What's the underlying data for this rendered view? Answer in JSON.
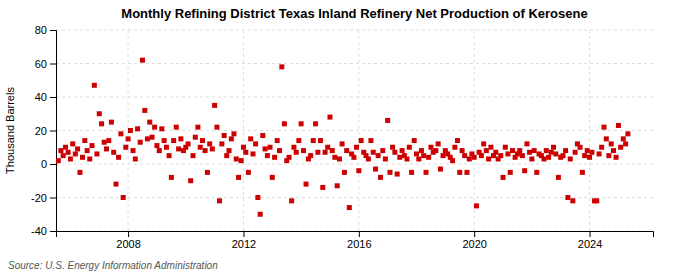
{
  "chart_data": {
    "type": "scatter",
    "title": "Monthly Refining District Texas Inland Refinery Net Production of Kerosene",
    "ylabel": "Thousand Barrels",
    "annotation": "Source: U.S. Energy Information Administration",
    "color": "#cc0000",
    "marker": "square",
    "grid": true,
    "xlim": [
      2005.5,
      2026.2
    ],
    "xticks": [
      2008,
      2012,
      2016,
      2020,
      2024
    ],
    "ylim": [
      -40,
      80
    ],
    "yticks": [
      -40,
      -20,
      0,
      20,
      40,
      60,
      80
    ],
    "x": [
      2005.58,
      2005.67,
      2005.75,
      2005.83,
      2005.92,
      2006.0,
      2006.08,
      2006.17,
      2006.25,
      2006.33,
      2006.42,
      2006.5,
      2006.58,
      2006.67,
      2006.75,
      2006.83,
      2006.92,
      2007.0,
      2007.08,
      2007.17,
      2007.25,
      2007.33,
      2007.42,
      2007.5,
      2007.58,
      2007.67,
      2007.75,
      2007.83,
      2007.92,
      2008.0,
      2008.08,
      2008.17,
      2008.25,
      2008.33,
      2008.42,
      2008.5,
      2008.58,
      2008.67,
      2008.75,
      2008.83,
      2008.92,
      2009.0,
      2009.08,
      2009.17,
      2009.25,
      2009.33,
      2009.42,
      2009.5,
      2009.58,
      2009.67,
      2009.75,
      2009.83,
      2009.92,
      2010.0,
      2010.08,
      2010.17,
      2010.25,
      2010.33,
      2010.42,
      2010.5,
      2010.58,
      2010.67,
      2010.75,
      2010.83,
      2010.92,
      2011.0,
      2011.08,
      2011.17,
      2011.25,
      2011.33,
      2011.42,
      2011.5,
      2011.58,
      2011.67,
      2011.75,
      2011.83,
      2011.92,
      2012.0,
      2012.08,
      2012.17,
      2012.25,
      2012.33,
      2012.42,
      2012.5,
      2012.58,
      2012.67,
      2012.75,
      2012.83,
      2012.92,
      2013.0,
      2013.08,
      2013.17,
      2013.25,
      2013.33,
      2013.42,
      2013.5,
      2013.58,
      2013.67,
      2013.75,
      2013.83,
      2013.92,
      2014.0,
      2014.08,
      2014.17,
      2014.25,
      2014.33,
      2014.42,
      2014.5,
      2014.58,
      2014.67,
      2014.75,
      2014.83,
      2014.92,
      2015.0,
      2015.08,
      2015.17,
      2015.25,
      2015.33,
      2015.42,
      2015.5,
      2015.58,
      2015.67,
      2015.75,
      2015.83,
      2015.92,
      2016.0,
      2016.08,
      2016.17,
      2016.25,
      2016.33,
      2016.42,
      2016.5,
      2016.58,
      2016.67,
      2016.75,
      2016.83,
      2016.92,
      2017.0,
      2017.08,
      2017.17,
      2017.25,
      2017.33,
      2017.42,
      2017.5,
      2017.58,
      2017.67,
      2017.75,
      2017.83,
      2017.92,
      2018.0,
      2018.08,
      2018.17,
      2018.25,
      2018.33,
      2018.42,
      2018.5,
      2018.58,
      2018.67,
      2018.75,
      2018.83,
      2018.92,
      2019.0,
      2019.08,
      2019.17,
      2019.25,
      2019.33,
      2019.42,
      2019.5,
      2019.58,
      2019.67,
      2019.75,
      2019.83,
      2019.92,
      2020.0,
      2020.08,
      2020.17,
      2020.25,
      2020.33,
      2020.42,
      2020.5,
      2020.58,
      2020.67,
      2020.75,
      2020.83,
      2020.92,
      2021.0,
      2021.08,
      2021.17,
      2021.25,
      2021.33,
      2021.42,
      2021.5,
      2021.58,
      2021.67,
      2021.75,
      2021.83,
      2021.92,
      2022.0,
      2022.08,
      2022.17,
      2022.25,
      2022.33,
      2022.42,
      2022.5,
      2022.58,
      2022.67,
      2022.75,
      2022.83,
      2022.92,
      2023.0,
      2023.08,
      2023.17,
      2023.25,
      2023.33,
      2023.42,
      2023.5,
      2023.58,
      2023.67,
      2023.75,
      2023.83,
      2023.92,
      2024.0,
      2024.08,
      2024.17,
      2024.25,
      2024.33,
      2024.42,
      2024.5,
      2024.58,
      2024.67,
      2024.75,
      2024.83,
      2024.92,
      2025.0,
      2025.08,
      2025.17,
      2025.25,
      2025.33
    ],
    "values": [
      2,
      8,
      5,
      10,
      7,
      3,
      12,
      6,
      9,
      -5,
      4,
      14,
      8,
      3,
      11,
      47,
      6,
      30,
      24,
      13,
      9,
      14,
      25,
      7,
      -12,
      4,
      18,
      -20,
      10,
      15,
      20,
      8,
      3,
      21,
      13,
      62,
      32,
      15,
      25,
      16,
      22,
      11,
      8,
      21,
      14,
      10,
      5,
      -8,
      14,
      22,
      9,
      15,
      8,
      10,
      12,
      -10,
      5,
      16,
      22,
      10,
      14,
      8,
      -5,
      12,
      9,
      35,
      22,
      -22,
      12,
      17,
      5,
      8,
      15,
      18,
      3,
      -8,
      2,
      10,
      7,
      -5,
      15,
      6,
      12,
      -20,
      -30,
      17,
      9,
      5,
      10,
      -8,
      4,
      14,
      8,
      58,
      24,
      2,
      4,
      -22,
      10,
      7,
      14,
      24,
      8,
      -12,
      3,
      5,
      14,
      24,
      7,
      14,
      -14,
      7,
      10,
      28,
      8,
      4,
      -13,
      3,
      12,
      -5,
      8,
      -26,
      6,
      4,
      10,
      -4,
      14,
      7,
      5,
      3,
      14,
      7,
      -3,
      5,
      -8,
      8,
      3,
      26,
      -5,
      10,
      7,
      -6,
      4,
      8,
      5,
      3,
      10,
      -5,
      14,
      6,
      3,
      8,
      5,
      -5,
      4,
      10,
      7,
      8,
      12,
      -3,
      5,
      8,
      6,
      4,
      2,
      10,
      14,
      -5,
      8,
      5,
      -5,
      3,
      6,
      4,
      -25,
      7,
      5,
      12,
      8,
      3,
      10,
      5,
      7,
      3,
      5,
      -8,
      10,
      6,
      -5,
      8,
      4,
      6,
      8,
      5,
      -4,
      12,
      7,
      3,
      8,
      -5,
      6,
      5,
      3,
      8,
      4,
      7,
      10,
      6,
      -8,
      4,
      5,
      8,
      -20,
      3,
      -22,
      7,
      12,
      10,
      -5,
      5,
      8,
      4,
      7,
      -22,
      -22,
      6,
      10,
      22,
      15,
      5,
      12,
      8,
      4,
      23,
      10,
      15,
      12,
      18
    ]
  }
}
